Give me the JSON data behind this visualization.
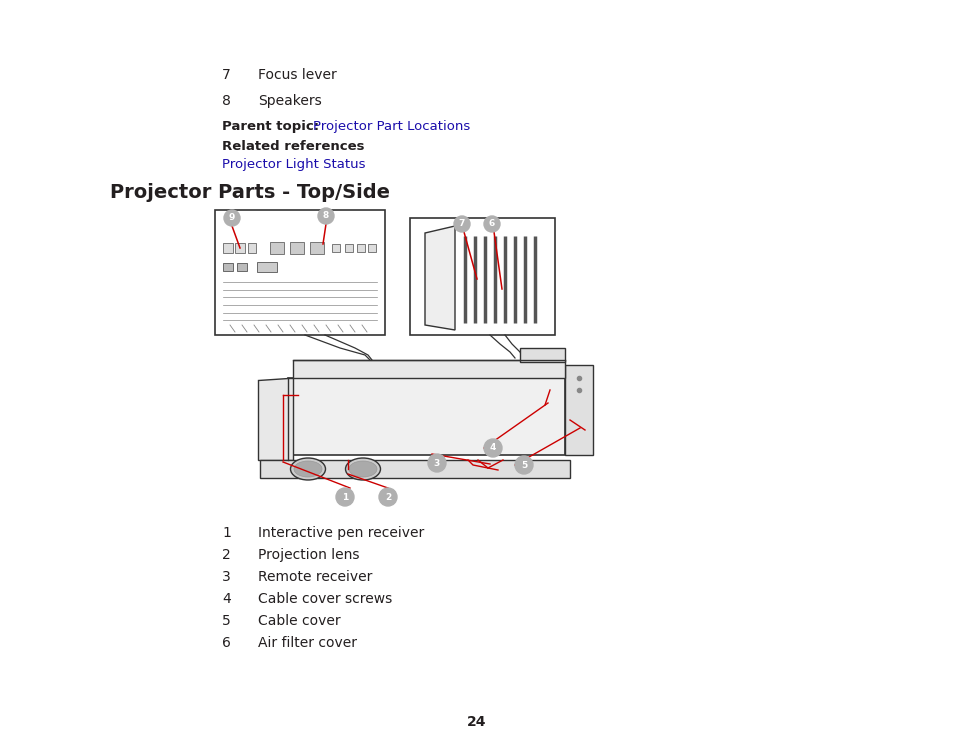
{
  "bg_color": "#ffffff",
  "title_section": "Projector Parts - Top/Side",
  "items_top": [
    {
      "num": "7",
      "text": "Focus lever"
    },
    {
      "num": "8",
      "text": "Speakers"
    }
  ],
  "parent_topic_label": "Parent topic: ",
  "parent_topic_link": "Projector Part Locations",
  "related_references_label": "Related references",
  "related_references_link": "Projector Light Status",
  "items_bottom": [
    {
      "num": "1",
      "text": "Interactive pen receiver"
    },
    {
      "num": "2",
      "text": "Projection lens"
    },
    {
      "num": "3",
      "text": "Remote receiver"
    },
    {
      "num": "4",
      "text": "Cable cover screws"
    },
    {
      "num": "5",
      "text": "Cable cover"
    },
    {
      "num": "6",
      "text": "Air filter cover"
    }
  ],
  "page_number": "24",
  "link_color": "#1a0dab",
  "text_color": "#231f20",
  "label_color_bg": "#b0b0b0",
  "label_color_fg": "#ffffff",
  "red_color": "#cc0000",
  "line_color": "#333333",
  "body_color": "#f5f5f5",
  "dark_line": "#444444"
}
